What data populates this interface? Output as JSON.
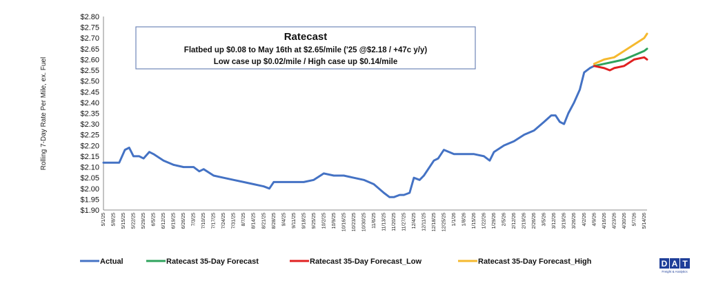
{
  "chart_data": {
    "type": "line",
    "ylabel": "Rolling 7-Day Rate Per Mile, ex. Fuel",
    "xlabel": "",
    "ylim": [
      1.9,
      2.8
    ],
    "y_ticks": [
      "$1.90",
      "$1.95",
      "$2.00",
      "$2.05",
      "$2.10",
      "$2.15",
      "$2.20",
      "$2.25",
      "$2.30",
      "$2.35",
      "$2.40",
      "$2.45",
      "$2.50",
      "$2.55",
      "$2.60",
      "$2.65",
      "$2.70",
      "$2.75",
      "$2.80"
    ],
    "x_ticks": [
      "5/1/25",
      "5/8/25",
      "5/15/25",
      "5/22/25",
      "5/29/25",
      "6/5/25",
      "6/12/25",
      "6/19/25",
      "6/26/25",
      "7/3/25",
      "7/10/25",
      "7/17/25",
      "7/24/25",
      "7/31/25",
      "8/7/25",
      "8/14/25",
      "8/21/25",
      "8/28/25",
      "9/4/25",
      "9/11/25",
      "9/18/25",
      "9/25/25",
      "10/2/25",
      "10/9/25",
      "10/16/25",
      "10/23/25",
      "10/30/25",
      "11/6/25",
      "11/13/25",
      "11/20/25",
      "11/27/25",
      "12/4/25",
      "12/11/25",
      "12/18/25",
      "12/25/25",
      "1/1/26",
      "1/8/26",
      "1/15/26",
      "1/22/26",
      "1/29/26",
      "2/5/26",
      "2/12/26",
      "2/19/26",
      "2/26/26",
      "3/5/26",
      "3/12/26",
      "3/19/26",
      "3/26/26",
      "4/2/26",
      "4/9/26",
      "4/16/26",
      "4/23/26",
      "4/30/26",
      "5/7/26",
      "5/14/26"
    ],
    "grid": false,
    "legend_position": "bottom",
    "annotation": {
      "title": "Ratecast",
      "lines": [
        "Flatbed up $0.08 to May 16th at $2.65/mile ('25 @$2.18 / +47c y/y)",
        "Low case up $0.02/mile / High case up $0.14/mile"
      ]
    },
    "series": [
      {
        "name": "Actual",
        "color": "#4472c4",
        "x": [
          "2025-05-01",
          "2025-05-08",
          "2025-05-12",
          "2025-05-16",
          "2025-05-19",
          "2025-05-22",
          "2025-05-26",
          "2025-05-29",
          "2025-06-02",
          "2025-06-05",
          "2025-06-12",
          "2025-06-19",
          "2025-06-26",
          "2025-07-03",
          "2025-07-07",
          "2025-07-10",
          "2025-07-17",
          "2025-07-24",
          "2025-07-31",
          "2025-08-07",
          "2025-08-14",
          "2025-08-21",
          "2025-08-25",
          "2025-08-28",
          "2025-09-04",
          "2025-09-11",
          "2025-09-18",
          "2025-09-25",
          "2025-10-02",
          "2025-10-09",
          "2025-10-16",
          "2025-10-23",
          "2025-10-30",
          "2025-11-06",
          "2025-11-13",
          "2025-11-17",
          "2025-11-20",
          "2025-11-24",
          "2025-11-27",
          "2025-12-01",
          "2025-12-04",
          "2025-12-08",
          "2025-12-11",
          "2025-12-18",
          "2025-12-21",
          "2025-12-25",
          "2026-01-01",
          "2026-01-08",
          "2026-01-15",
          "2026-01-22",
          "2026-01-26",
          "2026-01-29",
          "2026-02-05",
          "2026-02-12",
          "2026-02-19",
          "2026-02-26",
          "2026-03-05",
          "2026-03-10",
          "2026-03-13",
          "2026-03-16",
          "2026-03-19",
          "2026-03-22",
          "2026-03-26",
          "2026-03-30",
          "2026-04-02",
          "2026-04-06",
          "2026-04-09"
        ],
        "y": [
          2.12,
          2.12,
          2.12,
          2.18,
          2.19,
          2.15,
          2.15,
          2.14,
          2.17,
          2.16,
          2.13,
          2.11,
          2.1,
          2.1,
          2.08,
          2.09,
          2.06,
          2.05,
          2.04,
          2.03,
          2.02,
          2.01,
          2.0,
          2.03,
          2.03,
          2.03,
          2.03,
          2.04,
          2.07,
          2.06,
          2.06,
          2.05,
          2.04,
          2.02,
          1.98,
          1.96,
          1.96,
          1.97,
          1.97,
          1.98,
          2.05,
          2.04,
          2.06,
          2.13,
          2.14,
          2.18,
          2.16,
          2.16,
          2.16,
          2.15,
          2.13,
          2.17,
          2.2,
          2.22,
          2.25,
          2.27,
          2.31,
          2.34,
          2.34,
          2.31,
          2.3,
          2.35,
          2.4,
          2.46,
          2.54,
          2.56,
          2.57
        ]
      },
      {
        "name": "Ratecast 35-Day Forecast",
        "color": "#2ea35c",
        "x": [
          "2026-04-09",
          "2026-04-16",
          "2026-04-23",
          "2026-04-30",
          "2026-05-07",
          "2026-05-14",
          "2026-05-16"
        ],
        "y": [
          2.57,
          2.58,
          2.59,
          2.6,
          2.62,
          2.64,
          2.65
        ]
      },
      {
        "name": "Ratecast 35-Day Forecast_Low",
        "color": "#e02020",
        "x": [
          "2026-04-09",
          "2026-04-16",
          "2026-04-20",
          "2026-04-23",
          "2026-04-30",
          "2026-05-07",
          "2026-05-14",
          "2026-05-16"
        ],
        "y": [
          2.57,
          2.56,
          2.55,
          2.56,
          2.57,
          2.6,
          2.61,
          2.6
        ]
      },
      {
        "name": "Ratecast 35-Day Forecast_High",
        "color": "#f5b92e",
        "x": [
          "2026-04-09",
          "2026-04-16",
          "2026-04-23",
          "2026-04-30",
          "2026-05-07",
          "2026-05-14",
          "2026-05-16"
        ],
        "y": [
          2.58,
          2.6,
          2.61,
          2.64,
          2.67,
          2.7,
          2.72
        ]
      }
    ]
  },
  "logo": {
    "letters": [
      "D",
      "A",
      "T"
    ],
    "subtitle": "Freight & Analytics"
  }
}
